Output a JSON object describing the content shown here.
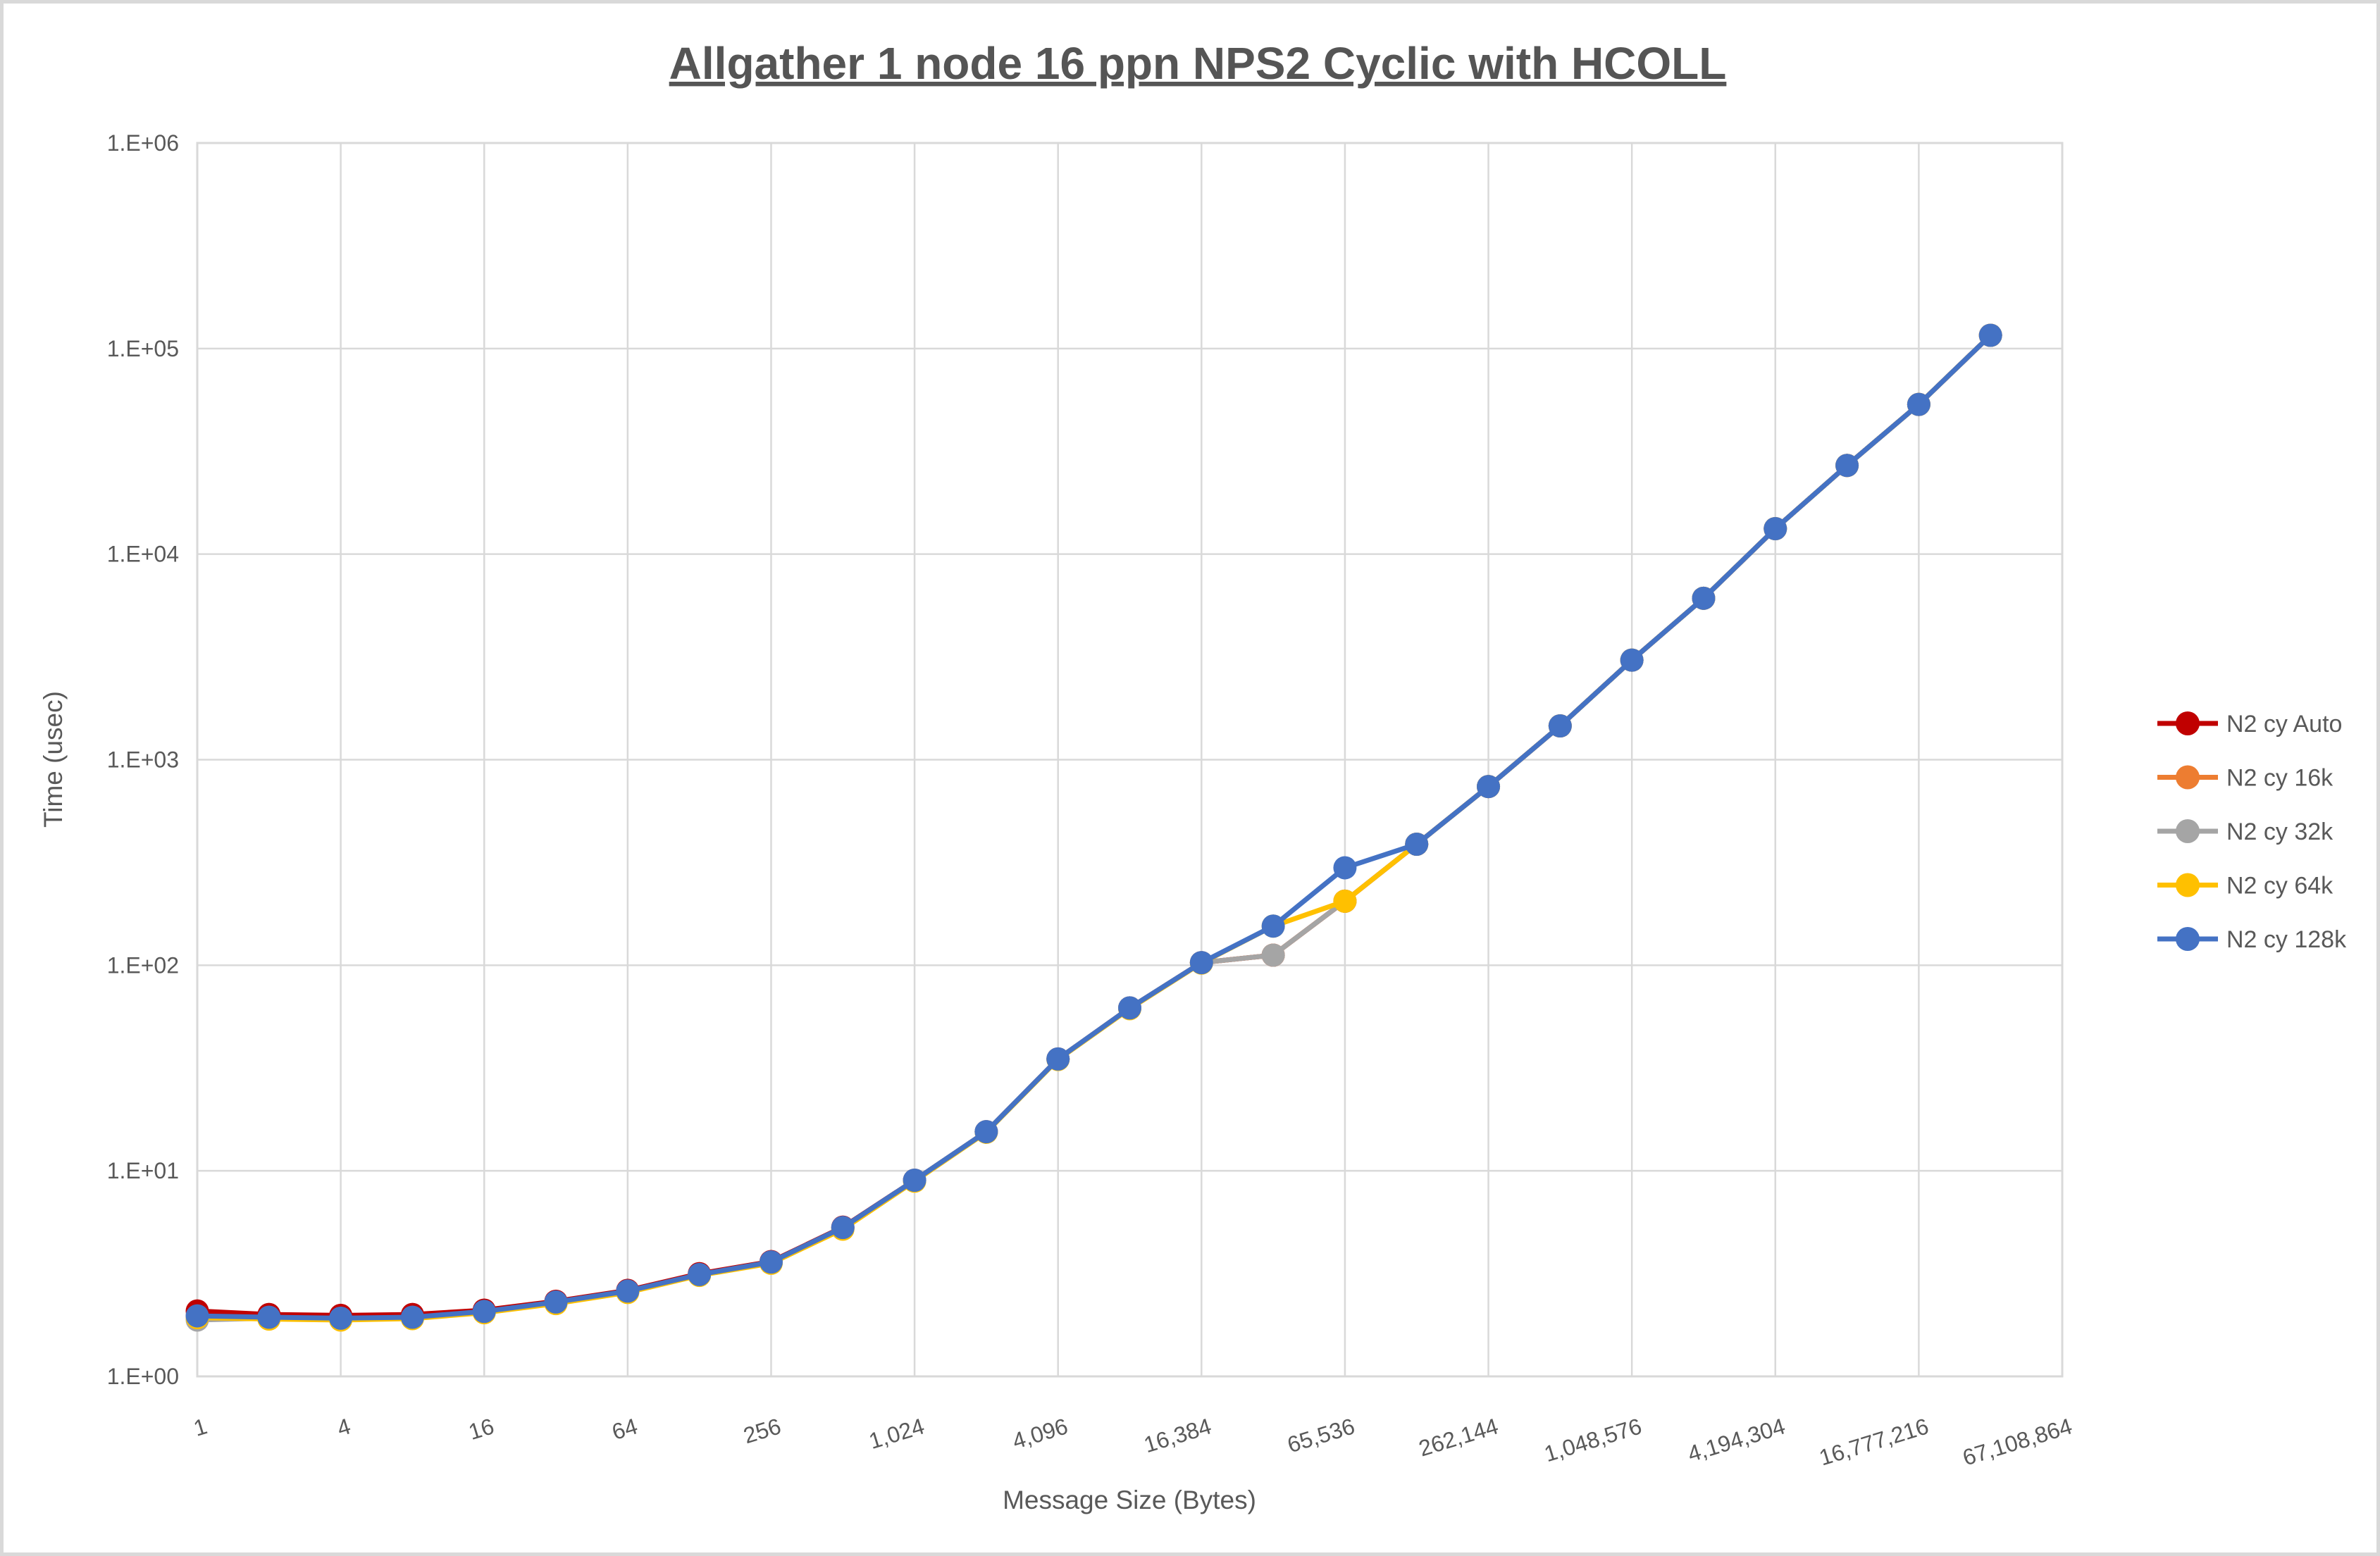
{
  "chart_data": {
    "type": "line",
    "title": "Allgather 1 node 16 ppn NPS2 Cyclic with HCOLL",
    "xlabel": "Message Size (Bytes)",
    "ylabel": "Time (usec)",
    "x_scale": "log2",
    "y_scale": "log10",
    "xlim": [
      1,
      67108864
    ],
    "ylim": [
      1,
      1000000
    ],
    "grid": true,
    "legend_position": "right",
    "x_ticks": {
      "values": [
        1,
        4,
        16,
        64,
        256,
        1024,
        4096,
        16384,
        65536,
        262144,
        1048576,
        4194304,
        16777216,
        67108864
      ],
      "labels": [
        "1",
        "4",
        "16",
        "64",
        "256",
        "1,024",
        "4,096",
        "16,384",
        "65,536",
        "262,144",
        "1,048,576",
        "4,194,304",
        "16,777,216",
        "67,108,864"
      ]
    },
    "y_ticks": {
      "values": [
        1,
        10,
        100,
        1000,
        10000,
        100000,
        1000000
      ],
      "labels": [
        "1.E+00",
        "1.E+01",
        "1.E+02",
        "1.E+03",
        "1.E+04",
        "1.E+05",
        "1.E+06"
      ]
    },
    "x": [
      1,
      2,
      4,
      8,
      16,
      32,
      64,
      128,
      256,
      512,
      1024,
      2048,
      4096,
      8192,
      16384,
      32768,
      65536,
      131072,
      262144,
      524288,
      1048576,
      2097152,
      4194304,
      8388608,
      16777216,
      33554432
    ],
    "series": [
      {
        "name": "N2 cy Auto",
        "color": "#C00000",
        "values": [
          2.08,
          2.0,
          1.98,
          2.0,
          2.1,
          2.32,
          2.62,
          3.16,
          3.62,
          5.32,
          9.0,
          15.5,
          35,
          62,
          103,
          112,
          205,
          388,
          740,
          1460,
          3050,
          6100,
          13300,
          27000,
          53500,
          116000
        ]
      },
      {
        "name": "N2 cy 16k",
        "color": "#ED7D31",
        "values": [
          1.96,
          1.93,
          1.91,
          1.93,
          2.06,
          2.28,
          2.58,
          3.12,
          3.58,
          5.27,
          9.0,
          15.5,
          35,
          62,
          103,
          112,
          205,
          388,
          740,
          1460,
          3050,
          6100,
          13300,
          27000,
          53500,
          116000
        ]
      },
      {
        "name": "N2 cy 32k",
        "color": "#A5A5A5",
        "values": [
          1.88,
          1.92,
          1.9,
          1.93,
          2.06,
          2.28,
          2.58,
          3.12,
          3.57,
          5.25,
          9.0,
          15.5,
          35,
          62,
          103,
          112,
          205,
          388,
          740,
          1460,
          3050,
          6100,
          13300,
          27000,
          53500,
          116000
        ]
      },
      {
        "name": "N2 cy 64k",
        "color": "#FFC000",
        "values": [
          1.93,
          1.9,
          1.88,
          1.91,
          2.04,
          2.26,
          2.56,
          3.1,
          3.55,
          5.2,
          8.9,
          15.4,
          34.8,
          61.5,
          102.5,
          155,
          205,
          388,
          740,
          1460,
          3050,
          6100,
          13300,
          27000,
          53500,
          116000
        ]
      },
      {
        "name": "N2 cy 128k",
        "color": "#4472C4",
        "values": [
          1.97,
          1.94,
          1.92,
          1.94,
          2.07,
          2.3,
          2.6,
          3.13,
          3.6,
          5.3,
          9.0,
          15.5,
          35,
          62,
          103,
          155,
          298,
          388,
          740,
          1460,
          3050,
          6100,
          13300,
          27000,
          53500,
          116000
        ]
      }
    ]
  },
  "colors": {
    "grid": "#D9D9D9",
    "plot_border": "#D9D9D9",
    "chart_border": "#D9D9D9",
    "text": "#595959",
    "title_text": "#555555"
  }
}
